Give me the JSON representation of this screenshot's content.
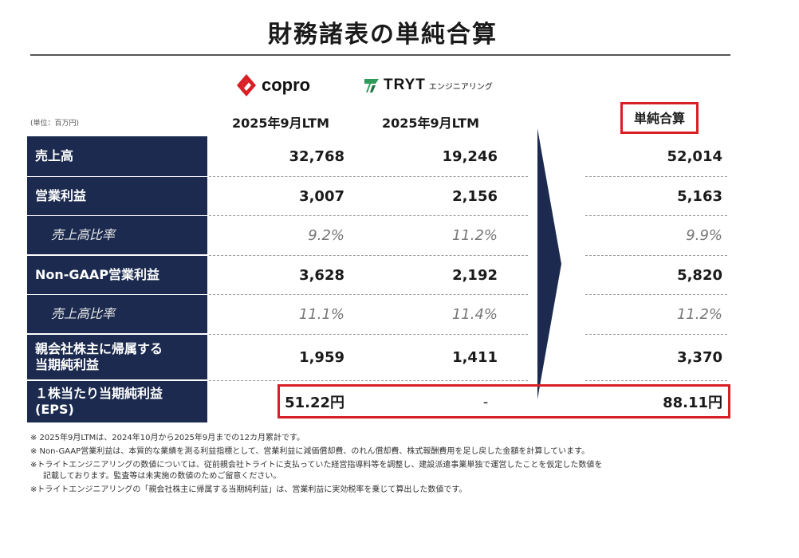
{
  "title": "財務諸表の単純合算",
  "logos": {
    "copro": "copro",
    "tryt": "TRYT",
    "tryt_sub": "エンジニアリング"
  },
  "unit_label": "(単位：百万円)",
  "column_headers": [
    "2025年9月LTM",
    "2025年9月LTM",
    "単純合算"
  ],
  "rows": [
    {
      "label": "売上高",
      "values": [
        "32,768",
        "19,246",
        "52,014"
      ]
    },
    {
      "label": "営業利益",
      "values": [
        "3,007",
        "2,156",
        "5,163"
      ]
    },
    {
      "label": "売上高比率",
      "values": [
        "9.2%",
        "11.2%",
        "9.9%"
      ]
    },
    {
      "label": "Non-GAAP営業利益",
      "values": [
        "3,628",
        "2,192",
        "5,820"
      ]
    },
    {
      "label": "売上高比率",
      "values": [
        "11.1%",
        "11.4%",
        "11.2%"
      ]
    },
    {
      "label_line1": "親会社株主に帰属する",
      "label_line2": "当期純利益",
      "values": [
        "1,959",
        "1,411",
        "3,370"
      ]
    },
    {
      "label_line1": "１株当たり当期純利益",
      "label_line2": "(EPS)",
      "values": [
        "51.22円",
        "-",
        "88.11円"
      ]
    }
  ],
  "notes": [
    "※ 2025年9月LTMは、2024年10月から2025年9月までの12カ月累計です。",
    "※ Non-GAAP営業利益は、本質的な業績を測る利益指標として、営業利益に減価償却費、のれん償却費、株式報酬費用を足し戻した金額を計算しています。",
    "※トライトエンジニアリングの数値については、従前親会社トライトに支払っていた経営指導料等を調整し、建設派遣事業単独で運営したことを仮定した数値を",
    "記載しております。監査等は未実施の数値のためご留意ください。",
    "※トライトエンジニアリングの「親会社株主に帰属する当期純利益」は、営業利益に実効税率を乗じて算出した数値です。"
  ],
  "colors": {
    "navy": "#1b2a4e",
    "highlight": "#d81f26",
    "copro_red": "#d81f26",
    "tryt_green": "#2e9b5a"
  }
}
